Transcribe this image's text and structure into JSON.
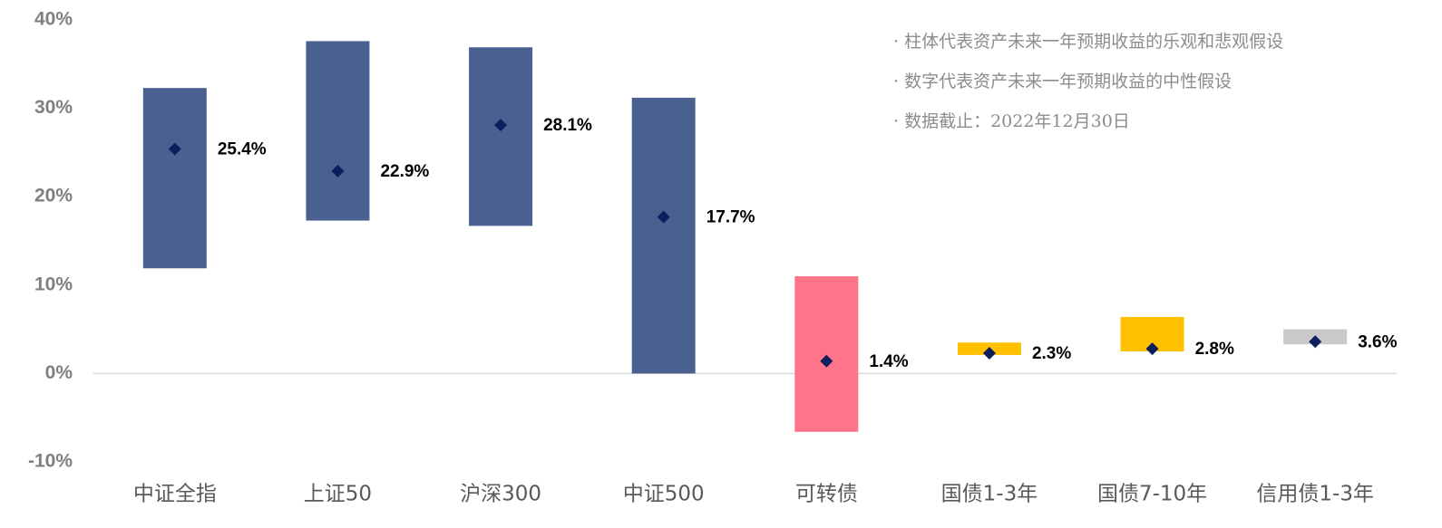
{
  "chart_data": {
    "type": "floating_bar",
    "categories": [
      "中证全指",
      "上证50",
      "沪深300",
      "中证500",
      "可转债",
      "国债1-3年",
      "国债7-10年",
      "信用债1-3年"
    ],
    "lows": [
      11.9,
      17.3,
      16.7,
      0,
      -6.6,
      2.1,
      2.5,
      3.3
    ],
    "highs": [
      32.3,
      37.6,
      36.9,
      31.2,
      11.0,
      3.5,
      6.4,
      5.0
    ],
    "values": [
      25.4,
      22.9,
      28.1,
      17.7,
      1.4,
      2.3,
      2.8,
      3.6
    ],
    "value_labels": [
      "25.4%",
      "22.9%",
      "28.1%",
      "17.7%",
      "1.4%",
      "2.3%",
      "2.8%",
      "3.6%"
    ],
    "colors": [
      "#4a6090",
      "#4a6090",
      "#4a6090",
      "#4a6090",
      "#ff7489",
      "#ffc000",
      "#ffc000",
      "#c9c9c9"
    ],
    "marker_color": "#0d1f5c",
    "ylim": [
      -10,
      40
    ],
    "yticks": [
      {
        "value": -10,
        "label": "-10%"
      },
      {
        "value": 0,
        "label": "0%"
      },
      {
        "value": 10,
        "label": "10%"
      },
      {
        "value": 20,
        "label": "20%"
      },
      {
        "value": 30,
        "label": "30%"
      },
      {
        "value": 40,
        "label": "40%"
      }
    ],
    "notes": [
      "· 柱体代表资产未来一年预期收益的乐观和悲观假设",
      "· 数字代表资产未来一年预期收益的中性假设",
      "· 数据截止：2022年12月30日"
    ]
  }
}
